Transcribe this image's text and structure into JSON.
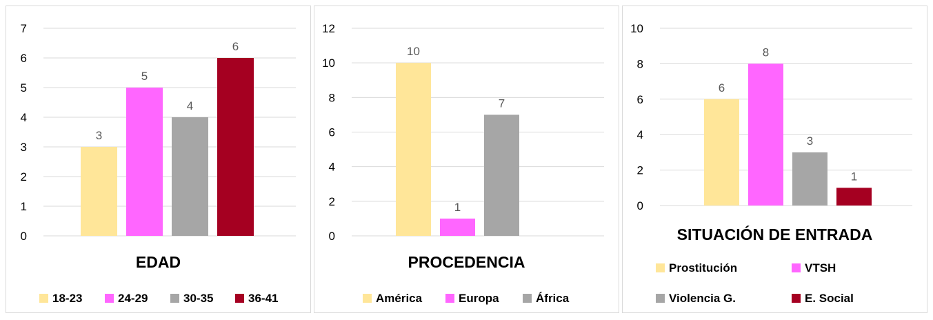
{
  "colors": {
    "c1": "#ffe699",
    "c2": "#ff66ff",
    "c3": "#a6a6a6",
    "c4": "#a50021",
    "grid": "#d9d9d9",
    "tick": "#000000",
    "label": "#595959"
  },
  "chart_data": [
    {
      "type": "bar",
      "title": "EDAD",
      "categories": [
        "18-23",
        "24-29",
        "30-35",
        "36-41"
      ],
      "values": [
        3,
        5,
        4,
        6
      ],
      "ylim": [
        0,
        7
      ],
      "yticks": [
        "0",
        "1",
        "2",
        "3",
        "4",
        "5",
        "6",
        "7"
      ],
      "colors": [
        "#ffe699",
        "#ff66ff",
        "#a6a6a6",
        "#a50021"
      ],
      "legend": [
        "18-23",
        "24-29",
        "30-35",
        "36-41"
      ],
      "grid": true,
      "legend_position": "bottom"
    },
    {
      "type": "bar",
      "title": "PROCEDENCIA",
      "categories": [
        "América",
        "Europa",
        "África"
      ],
      "values": [
        10,
        1,
        7
      ],
      "ylim": [
        0,
        12
      ],
      "yticks": [
        "0",
        "2",
        "4",
        "6",
        "8",
        "10",
        "12"
      ],
      "colors": [
        "#ffe699",
        "#ff66ff",
        "#a6a6a6"
      ],
      "legend": [
        "América",
        "Europa",
        "África"
      ],
      "grid": true,
      "legend_position": "bottom"
    },
    {
      "type": "bar",
      "title": "SITUACIÓN DE ENTRADA",
      "categories": [
        "Prostitución",
        "VTSH",
        "Violencia G.",
        "E. Social"
      ],
      "values": [
        6,
        8,
        3,
        1
      ],
      "ylim": [
        0,
        10
      ],
      "yticks": [
        "0",
        "2",
        "4",
        "6",
        "8",
        "10"
      ],
      "colors": [
        "#ffe699",
        "#ff66ff",
        "#a6a6a6",
        "#a50021"
      ],
      "legend": [
        "Prostitución",
        "VTSH",
        "Violencia G.",
        "E. Social"
      ],
      "grid": true,
      "legend_position": "bottom"
    }
  ]
}
